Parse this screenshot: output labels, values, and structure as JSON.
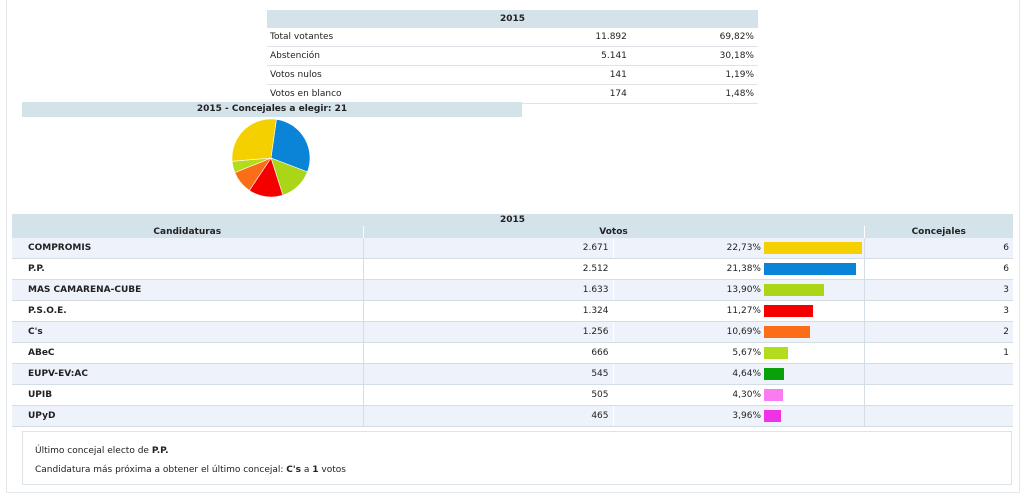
{
  "summary": {
    "year": "2015",
    "rows": [
      {
        "label": "Total votantes",
        "count": "11.892",
        "pct": "69,82%"
      },
      {
        "label": "Abstención",
        "count": "5.141",
        "pct": "30,18%"
      },
      {
        "label": "Votos nulos",
        "count": "141",
        "pct": "1,19%"
      },
      {
        "label": "Votos en blanco",
        "count": "174",
        "pct": "1,48%"
      }
    ]
  },
  "pie": {
    "title": "2015 - Concejales a elegir: 21"
  },
  "results": {
    "year": "2015",
    "headers": {
      "candidaturas": "Candidaturas",
      "votos": "Votos",
      "concejales": "Concejales"
    },
    "rows": [
      {
        "name": "COMPROMIS",
        "votes": "2.671",
        "pct": "22,73%",
        "share": 22.73,
        "seats": "6",
        "color": "#f5d000"
      },
      {
        "name": "P.P.",
        "votes": "2.512",
        "pct": "21,38%",
        "share": 21.38,
        "seats": "6",
        "color": "#0a84d6"
      },
      {
        "name": "MAS CAMARENA-CUBE",
        "votes": "1.633",
        "pct": "13,90%",
        "share": 13.9,
        "seats": "3",
        "color": "#aad617"
      },
      {
        "name": "P.S.O.E.",
        "votes": "1.324",
        "pct": "11,27%",
        "share": 11.27,
        "seats": "3",
        "color": "#f50000"
      },
      {
        "name": "C's",
        "votes": "1.256",
        "pct": "10,69%",
        "share": 10.69,
        "seats": "2",
        "color": "#fb6e17"
      },
      {
        "name": "ABeC",
        "votes": "666",
        "pct": "5,67%",
        "share": 5.67,
        "seats": "1",
        "color": "#b2dc1c"
      },
      {
        "name": "EUPV-EV:AC",
        "votes": "545",
        "pct": "4,64%",
        "share": 4.64,
        "seats": "",
        "color": "#0aa00a"
      },
      {
        "name": "UPIB",
        "votes": "505",
        "pct": "4,30%",
        "share": 4.3,
        "seats": "",
        "color": "#fb7cf0"
      },
      {
        "name": "UPyD",
        "votes": "465",
        "pct": "3,96%",
        "share": 3.96,
        "seats": "",
        "color": "#f032e6"
      }
    ]
  },
  "note": {
    "line1_prefix": "Último concejal electo de ",
    "line1_party": "P.P.",
    "line2_prefix": "Candidatura más próxima a obtener el último concejal: ",
    "line2_party": "C's",
    "line2_mid": " a ",
    "line2_votes": "1",
    "line2_suffix": " votos"
  }
}
